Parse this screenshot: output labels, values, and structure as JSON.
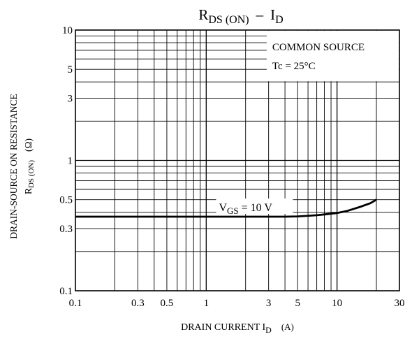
{
  "chart_data": {
    "type": "line",
    "title": {
      "main": "R",
      "main_sub": "DS (ON)",
      "dash": "–",
      "var": "I",
      "var_sub": "D"
    },
    "xlabel": {
      "text": "DRAIN CURRENT  I",
      "sub": "D",
      "unit": "(A)"
    },
    "ylabel": {
      "line1": "DRAIN-SOURCE ON RESISTANCE",
      "line2_main": "R",
      "line2_sub": "DS (ON)",
      "line2_unit": "(Ω)"
    },
    "x_scale": "log",
    "y_scale": "log",
    "xlim": [
      0.1,
      30
    ],
    "ylim": [
      0.1,
      10
    ],
    "x_ticks": [
      {
        "value": 0.1,
        "label": "0.1"
      },
      {
        "value": 0.3,
        "label": "0.3"
      },
      {
        "value": 0.5,
        "label": "0.5"
      },
      {
        "value": 1,
        "label": "1"
      },
      {
        "value": 3,
        "label": "3"
      },
      {
        "value": 5,
        "label": "5"
      },
      {
        "value": 10,
        "label": "10"
      },
      {
        "value": 30,
        "label": "30"
      }
    ],
    "y_ticks": [
      {
        "value": 0.1,
        "label": "0.1"
      },
      {
        "value": 0.3,
        "label": "0.3"
      },
      {
        "value": 0.5,
        "label": "0.5"
      },
      {
        "value": 1,
        "label": "1"
      },
      {
        "value": 3,
        "label": "3"
      },
      {
        "value": 5,
        "label": "5"
      },
      {
        "value": 10,
        "label": "10"
      }
    ],
    "x_grid": [
      0.2,
      0.3,
      0.4,
      0.5,
      0.6,
      0.7,
      0.8,
      0.9,
      1,
      2,
      3,
      4,
      5,
      6,
      7,
      8,
      9,
      10,
      20
    ],
    "y_grid": [
      0.2,
      0.3,
      0.4,
      0.5,
      0.6,
      0.7,
      0.8,
      0.9,
      1,
      2,
      3,
      4,
      5,
      6,
      7,
      8,
      9
    ],
    "grid": true,
    "legend_box": {
      "line1": "COMMON SOURCE",
      "line2": "Tc = 25°C",
      "position": "top-right"
    },
    "series": [
      {
        "label_main": "V",
        "label_sub": "GS",
        "label_rest": " = 10 V",
        "x": [
          0.1,
          1,
          3,
          4,
          5,
          6,
          7,
          8,
          10,
          12,
          15,
          18,
          20
        ],
        "y": [
          0.37,
          0.37,
          0.37,
          0.37,
          0.372,
          0.376,
          0.38,
          0.385,
          0.395,
          0.41,
          0.44,
          0.47,
          0.5
        ]
      }
    ]
  }
}
